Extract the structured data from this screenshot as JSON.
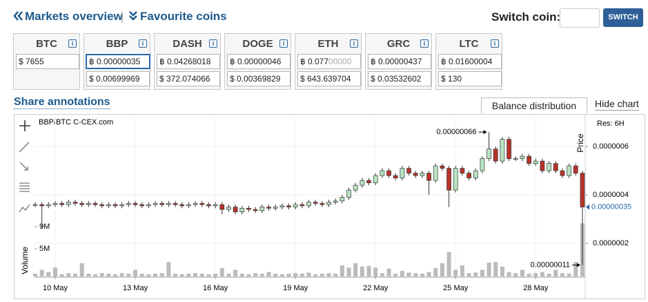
{
  "header": {
    "markets_overview": "Markets overview",
    "favourite_coins": "Favourite coins",
    "switch_coin": "Switch coin:",
    "switch_button": "SWITCH"
  },
  "info_icon": "i",
  "coins": [
    {
      "name": "BTC",
      "rows": [
        {
          "symbol": "$",
          "value": "7655"
        }
      ]
    },
    {
      "name": "BBP",
      "rows": [
        {
          "symbol": "฿",
          "value": "0.00000035"
        },
        {
          "symbol": "$",
          "value": "0.00699969"
        }
      ]
    },
    {
      "name": "DASH",
      "rows": [
        {
          "symbol": "฿",
          "value": "0.04268018"
        },
        {
          "symbol": "$",
          "value": "372.074066"
        }
      ]
    },
    {
      "name": "DOGE",
      "rows": [
        {
          "symbol": "฿",
          "value": "0.00000046"
        },
        {
          "symbol": "$",
          "value": "0.00369829"
        }
      ]
    },
    {
      "name": "ETH",
      "rows": [
        {
          "symbol": "฿",
          "value": "0.077",
          "faded": "00000"
        },
        {
          "symbol": "$",
          "value": "643.639704"
        }
      ]
    },
    {
      "name": "GRC",
      "rows": [
        {
          "symbol": "฿",
          "value": "0.00000437"
        },
        {
          "symbol": "$",
          "value": "0.03532602"
        }
      ]
    },
    {
      "name": "LTC",
      "rows": [
        {
          "symbol": "฿",
          "value": "0.01600004"
        },
        {
          "symbol": "$",
          "value": "130"
        }
      ]
    }
  ],
  "share_annotations": "Share annotations",
  "tabs": [
    "Balance distribution",
    "Hide chart"
  ],
  "chart_data": {
    "type": "candlestick",
    "title": "BBP/BTC C-CEX.com",
    "resolution": "Res: 6H",
    "y_label": "Price",
    "volume_label": "Volume",
    "grid": true,
    "up_color": "#b9e4c2",
    "down_color": "#b8322a",
    "outline_color": "#333333",
    "ylim": [
      6.3e-08,
      7.26e-07
    ],
    "yticks": [
      {
        "value": 2e-07,
        "label": "0.0000002"
      },
      {
        "value": 4e-07,
        "label": "0.0000004"
      },
      {
        "value": 6e-07,
        "label": "0.0000006"
      }
    ],
    "categories": [
      null,
      null,
      null,
      "10 May",
      null,
      null,
      null,
      null,
      null,
      null,
      null,
      null,
      null,
      null,
      null,
      "13 May",
      null,
      null,
      null,
      null,
      null,
      null,
      null,
      null,
      null,
      null,
      null,
      "16 May",
      null,
      null,
      null,
      null,
      null,
      null,
      null,
      null,
      null,
      null,
      null,
      "19 May",
      null,
      null,
      null,
      null,
      null,
      null,
      null,
      null,
      null,
      null,
      null,
      "22 May",
      null,
      null,
      null,
      null,
      null,
      null,
      null,
      null,
      null,
      null,
      null,
      "25 May",
      null,
      null,
      null,
      null,
      null,
      null,
      null,
      null,
      null,
      null,
      null,
      "28 May",
      null,
      null,
      null,
      null,
      null,
      null,
      null
    ],
    "open": [
      3.6e-07,
      3.6e-07,
      3.55e-07,
      3.6e-07,
      3.65e-07,
      3.6e-07,
      3.7e-07,
      3.65e-07,
      3.6e-07,
      3.65e-07,
      3.6e-07,
      3.55e-07,
      3.6e-07,
      3.55e-07,
      3.6e-07,
      3.65e-07,
      3.6e-07,
      3.55e-07,
      3.6e-07,
      3.65e-07,
      3.6e-07,
      3.65e-07,
      3.6e-07,
      3.55e-07,
      3.6e-07,
      3.65e-07,
      3.6e-07,
      3.55e-07,
      3.6e-07,
      3.4e-07,
      3.5e-07,
      3.3e-07,
      3.45e-07,
      3.4e-07,
      3.35e-07,
      3.5e-07,
      3.45e-07,
      3.5e-07,
      3.55e-07,
      3.5e-07,
      3.6e-07,
      3.55e-07,
      3.7e-07,
      3.65e-07,
      3.6e-07,
      3.7e-07,
      3.75e-07,
      3.9e-07,
      4.2e-07,
      4.4e-07,
      4.6e-07,
      4.5e-07,
      4.8e-07,
      5e-07,
      4.8e-07,
      4.7e-07,
      5.1e-07,
      4.9e-07,
      4.8e-07,
      4.9e-07,
      4.6e-07,
      5.2e-07,
      5.1e-07,
      4.2e-07,
      5.1e-07,
      4.9e-07,
      4.7e-07,
      5e-07,
      5.5e-07,
      5.9e-07,
      5.4e-07,
      6.3e-07,
      5.5e-07,
      5.5e-07,
      5.6e-07,
      5.3e-07,
      5.4e-07,
      5e-07,
      5.3e-07,
      5e-07,
      4.8e-07,
      5.2e-07,
      4.9e-07
    ],
    "high": [
      3.7e-07,
      3.7e-07,
      3.7e-07,
      3.75e-07,
      3.75e-07,
      3.8e-07,
      3.8e-07,
      3.75e-07,
      3.75e-07,
      3.75e-07,
      3.7e-07,
      3.7e-07,
      3.7e-07,
      3.7e-07,
      3.75e-07,
      3.75e-07,
      3.7e-07,
      3.7e-07,
      3.75e-07,
      3.75e-07,
      3.75e-07,
      3.75e-07,
      3.7e-07,
      3.7e-07,
      3.75e-07,
      3.75e-07,
      3.7e-07,
      3.7e-07,
      3.7e-07,
      3.6e-07,
      3.6e-07,
      3.55e-07,
      3.55e-07,
      3.5e-07,
      3.6e-07,
      3.6e-07,
      3.6e-07,
      3.65e-07,
      3.65e-07,
      3.7e-07,
      3.7e-07,
      3.8e-07,
      3.8e-07,
      3.75e-07,
      3.8e-07,
      3.85e-07,
      4e-07,
      4.3e-07,
      4.5e-07,
      4.7e-07,
      4.7e-07,
      4.9e-07,
      5.1e-07,
      5.1e-07,
      4.9e-07,
      5.2e-07,
      5.2e-07,
      5e-07,
      5e-07,
      5e-07,
      5.3e-07,
      5.3e-07,
      5.2e-07,
      5.2e-07,
      5.2e-07,
      5e-07,
      5.1e-07,
      5.6e-07,
      6.6e-07,
      6e-07,
      6.4e-07,
      6.4e-07,
      5.6e-07,
      5.7e-07,
      5.7e-07,
      5.5e-07,
      5.5e-07,
      5.4e-07,
      5.4e-07,
      5.1e-07,
      5.3e-07,
      5.3e-07,
      5e-07
    ],
    "low": [
      3.5e-07,
      2.6e-07,
      3.45e-07,
      3.5e-07,
      3.5e-07,
      3.5e-07,
      3.55e-07,
      3.5e-07,
      3.5e-07,
      3.5e-07,
      3.45e-07,
      3.45e-07,
      3.45e-07,
      3.45e-07,
      3.5e-07,
      3.5e-07,
      3.45e-07,
      3.45e-07,
      3.5e-07,
      3.5e-07,
      3.5e-07,
      3.5e-07,
      3.45e-07,
      3.45e-07,
      3.5e-07,
      3.5e-07,
      3.45e-07,
      3.45e-07,
      3.2e-07,
      3.3e-07,
      3.2e-07,
      3.2e-07,
      3.3e-07,
      3.25e-07,
      3.25e-07,
      3.35e-07,
      3.35e-07,
      3.4e-07,
      3.4e-07,
      3.4e-07,
      3.45e-07,
      3.45e-07,
      3.55e-07,
      3.5e-07,
      3.5e-07,
      3.6e-07,
      3.65e-07,
      3.8e-07,
      4.1e-07,
      4.3e-07,
      4.4e-07,
      4.4e-07,
      4.7e-07,
      4.7e-07,
      4.6e-07,
      4.6e-07,
      4.8e-07,
      4.7e-07,
      4.7e-07,
      4e-07,
      4.5e-07,
      5e-07,
      3.5e-07,
      4.1e-07,
      4.8e-07,
      4.6e-07,
      4.6e-07,
      4.9e-07,
      5.4e-07,
      5.3e-07,
      5.3e-07,
      5.4e-07,
      5.4e-07,
      5.4e-07,
      5.2e-07,
      5.2e-07,
      4.9e-07,
      4.9e-07,
      4.9e-07,
      4.7e-07,
      4.7e-07,
      4.8e-07,
      1.1e-07
    ],
    "close": [
      3.6e-07,
      3.55e-07,
      3.6e-07,
      3.65e-07,
      3.6e-07,
      3.7e-07,
      3.65e-07,
      3.6e-07,
      3.65e-07,
      3.6e-07,
      3.55e-07,
      3.6e-07,
      3.55e-07,
      3.6e-07,
      3.65e-07,
      3.6e-07,
      3.55e-07,
      3.6e-07,
      3.65e-07,
      3.6e-07,
      3.65e-07,
      3.6e-07,
      3.55e-07,
      3.6e-07,
      3.65e-07,
      3.6e-07,
      3.55e-07,
      3.6e-07,
      3.4e-07,
      3.5e-07,
      3.3e-07,
      3.45e-07,
      3.4e-07,
      3.35e-07,
      3.5e-07,
      3.45e-07,
      3.5e-07,
      3.55e-07,
      3.5e-07,
      3.6e-07,
      3.55e-07,
      3.7e-07,
      3.65e-07,
      3.6e-07,
      3.7e-07,
      3.75e-07,
      3.9e-07,
      4.2e-07,
      4.4e-07,
      4.6e-07,
      4.5e-07,
      4.8e-07,
      5e-07,
      4.8e-07,
      4.7e-07,
      5.1e-07,
      4.9e-07,
      4.8e-07,
      4.9e-07,
      4.6e-07,
      5.2e-07,
      5.1e-07,
      4.2e-07,
      5.1e-07,
      4.9e-07,
      4.7e-07,
      5e-07,
      5.5e-07,
      5.9e-07,
      5.4e-07,
      6.3e-07,
      5.5e-07,
      5.5e-07,
      5.6e-07,
      5.3e-07,
      5.4e-07,
      5e-07,
      5.3e-07,
      5e-07,
      4.8e-07,
      5.2e-07,
      4.9e-07,
      3.5e-07
    ],
    "volume": {
      "color": "#bbbbbb",
      "ylim": [
        0,
        29000000
      ],
      "yticks": [
        {
          "value": 5000000,
          "label": "5M"
        },
        {
          "value": 9000000,
          "label": "9M"
        }
      ],
      "values": [
        500000,
        1200000,
        800000,
        1600000,
        400000,
        600000,
        500000,
        2400000,
        500000,
        400000,
        600000,
        500000,
        400000,
        600000,
        500000,
        1200000,
        500000,
        400000,
        500000,
        600000,
        2600000,
        500000,
        400000,
        500000,
        600000,
        500000,
        400000,
        500000,
        1500000,
        500000,
        1200000,
        500000,
        400000,
        600000,
        500000,
        800000,
        500000,
        400000,
        500000,
        600000,
        500000,
        700000,
        400000,
        500000,
        600000,
        500000,
        2000000,
        1600000,
        2400000,
        1800000,
        1900000,
        1600000,
        600000,
        1400000,
        500000,
        1000000,
        700000,
        600000,
        500000,
        800000,
        1500000,
        2400000,
        4400000,
        1200000,
        2000000,
        600000,
        700000,
        1200000,
        2500000,
        2600000,
        1800000,
        800000,
        600000,
        1200000,
        500000,
        600000,
        800000,
        500000,
        1200000,
        600000,
        500000,
        2600000,
        9600000
      ]
    },
    "last_price": {
      "value": 3.5e-07,
      "label": "0.00000035"
    },
    "annotations": [
      {
        "value": 6.6e-07,
        "label": "0.00000066"
      },
      {
        "value": 1.1e-07,
        "label": "0.00000011"
      }
    ]
  }
}
